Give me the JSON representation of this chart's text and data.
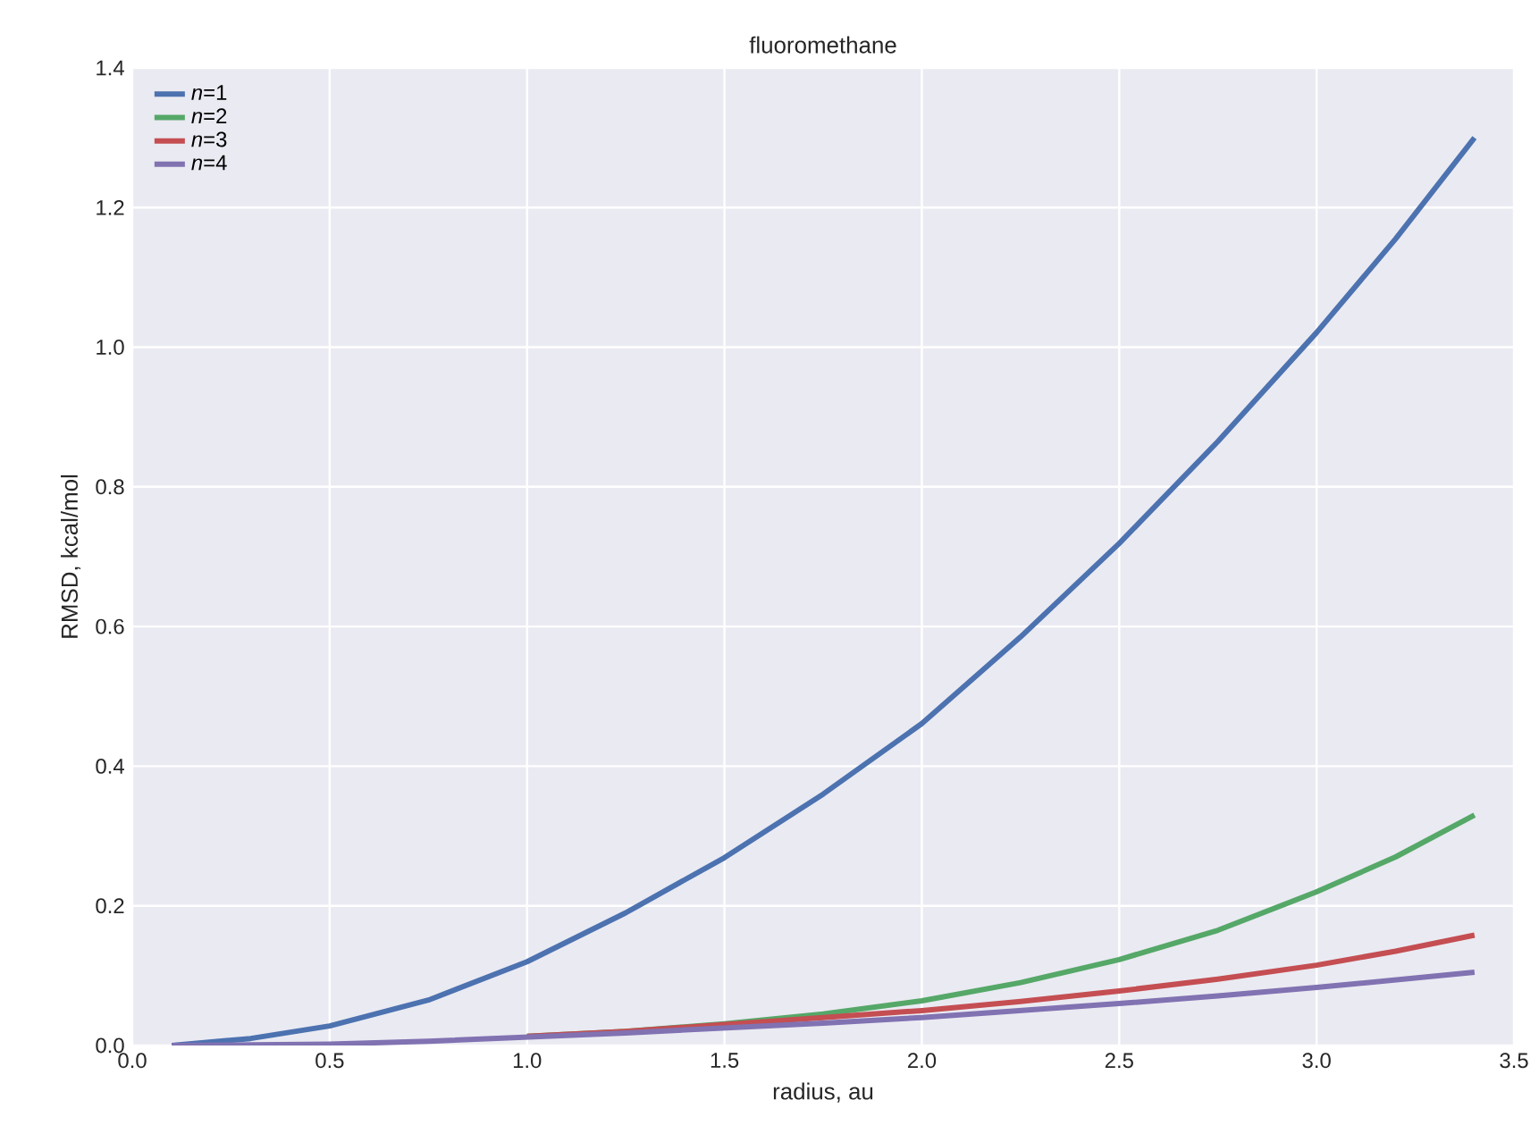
{
  "chart_data": {
    "type": "line",
    "title": "fluoromethane",
    "xlabel": "radius, au",
    "ylabel": "RMSD, kcal/mol",
    "x": [
      0.1,
      0.3,
      0.5,
      0.75,
      1.0,
      1.25,
      1.5,
      1.75,
      2.0,
      2.25,
      2.5,
      2.75,
      3.0,
      3.2,
      3.4
    ],
    "series": [
      {
        "name": "*n*=1",
        "color": "#4c72b0",
        "values": [
          0.0,
          0.01,
          0.028,
          0.065,
          0.12,
          0.19,
          0.269,
          0.36,
          0.461,
          0.585,
          0.719,
          0.865,
          1.021,
          1.155,
          1.3
        ]
      },
      {
        "name": "*n*=2",
        "color": "#55a868",
        "values": [
          null,
          null,
          null,
          null,
          0.013,
          0.02,
          0.031,
          0.045,
          0.064,
          0.09,
          0.123,
          0.165,
          0.22,
          0.27,
          0.33
        ]
      },
      {
        "name": "*n*=3",
        "color": "#c44e52",
        "values": [
          null,
          null,
          null,
          null,
          0.013,
          0.02,
          0.03,
          0.04,
          0.05,
          0.063,
          0.078,
          0.095,
          0.115,
          0.135,
          0.158
        ]
      },
      {
        "name": "*n*=4",
        "color": "#8172b2",
        "values": [
          0.0,
          0.001,
          0.002,
          0.006,
          0.012,
          0.018,
          0.025,
          0.032,
          0.04,
          0.05,
          0.06,
          0.071,
          0.083,
          0.094,
          0.105
        ]
      }
    ],
    "xlim": [
      0.0,
      3.5
    ],
    "ylim": [
      0.0,
      1.4
    ],
    "xticks": [
      {
        "value": 0.0,
        "label": "0.0"
      },
      {
        "value": 0.5,
        "label": "0.5"
      },
      {
        "value": 1.0,
        "label": "1.0"
      },
      {
        "value": 1.5,
        "label": "1.5"
      },
      {
        "value": 2.0,
        "label": "2.0"
      },
      {
        "value": 2.5,
        "label": "2.5"
      },
      {
        "value": 3.0,
        "label": "3.0"
      },
      {
        "value": 3.5,
        "label": "3.5"
      }
    ],
    "yticks": [
      {
        "value": 0.0,
        "label": "0.0"
      },
      {
        "value": 0.2,
        "label": "0.2"
      },
      {
        "value": 0.4,
        "label": "0.4"
      },
      {
        "value": 0.6,
        "label": "0.6"
      },
      {
        "value": 0.8,
        "label": "0.8"
      },
      {
        "value": 1.0,
        "label": "1.0"
      },
      {
        "value": 1.2,
        "label": "1.2"
      },
      {
        "value": 1.4,
        "label": "1.4"
      }
    ],
    "grid": true,
    "legend": "top left",
    "marker": "none",
    "line_style": "solid"
  }
}
